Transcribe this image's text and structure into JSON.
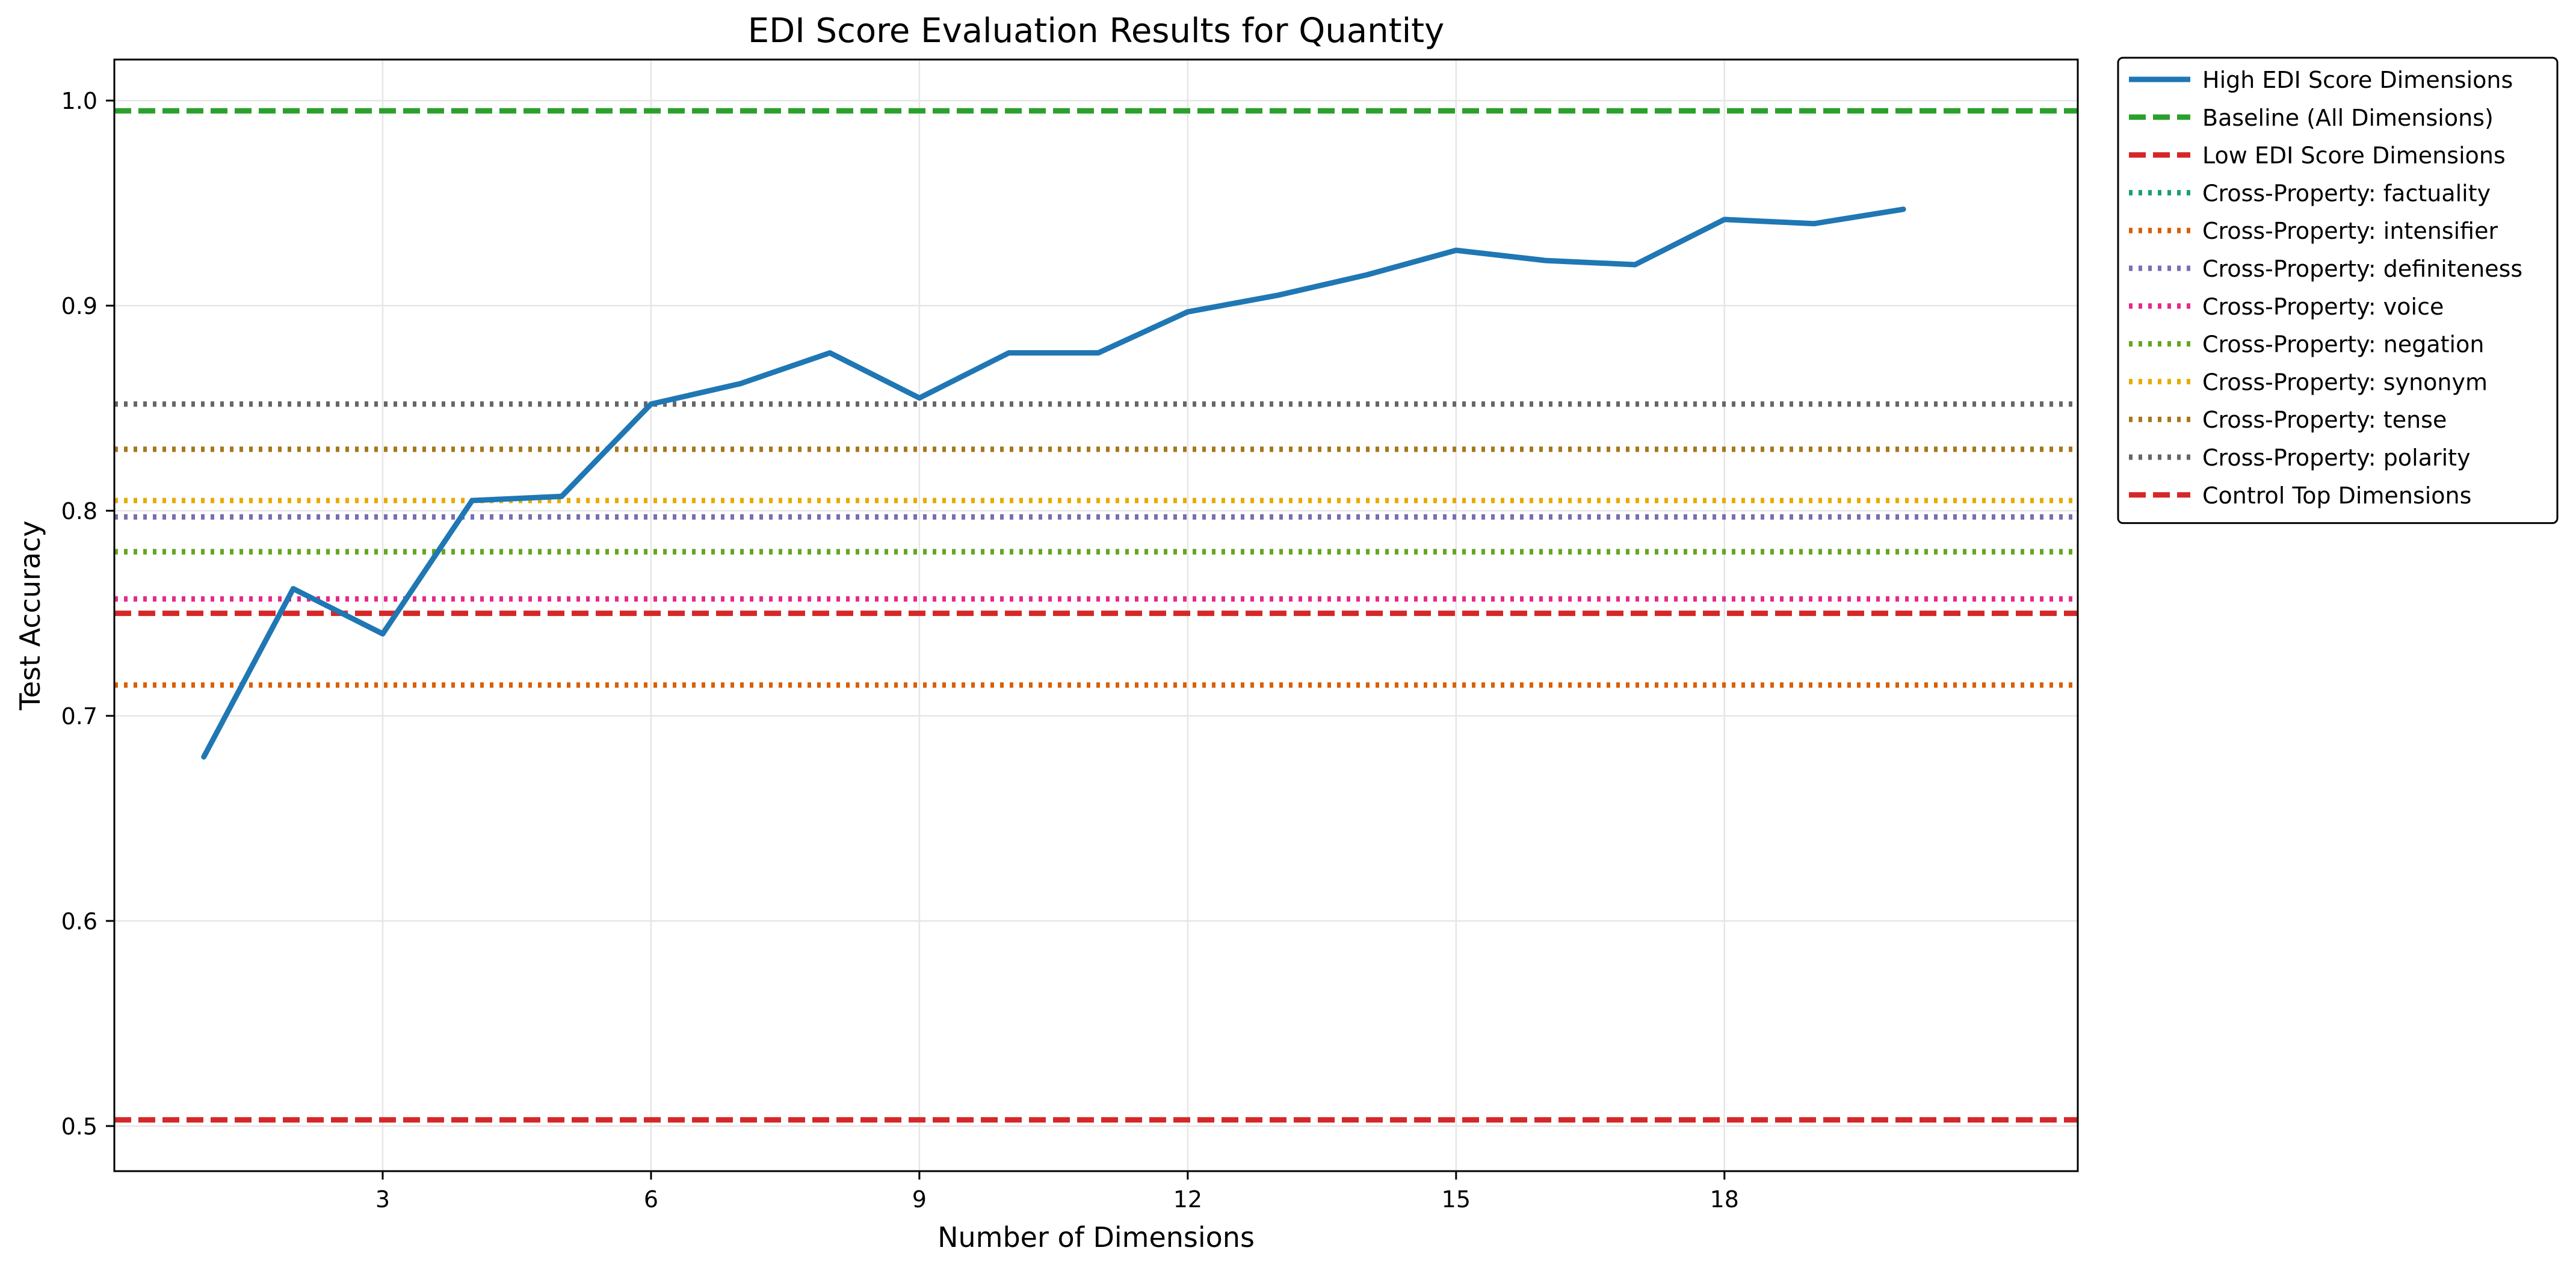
{
  "chart_data": {
    "type": "line",
    "title": "EDI Score Evaluation Results for Quantity",
    "xlabel": "Number of Dimensions",
    "ylabel": "Test Accuracy",
    "xlim": [
      0.0,
      21.95
    ],
    "ylim": [
      0.478,
      1.02
    ],
    "xticks": [
      3,
      6,
      9,
      12,
      15,
      18
    ],
    "xtick_labels": [
      "3",
      "6",
      "9",
      "12",
      "15",
      "18"
    ],
    "yticks": [
      0.5,
      0.6,
      0.7,
      0.8,
      0.9,
      1.0
    ],
    "ytick_labels": [
      "0.5",
      "0.6",
      "0.7",
      "0.8",
      "0.9",
      "1.0"
    ],
    "grid": true,
    "legend_position": "outside-upper-right",
    "series": [
      {
        "name": "High EDI Score Dimensions",
        "kind": "curve",
        "color": "#1f77b4",
        "style": "solid",
        "x": [
          1,
          2,
          3,
          4,
          5,
          6,
          7,
          8,
          9,
          10,
          11,
          12,
          13,
          14,
          15,
          16,
          17,
          18,
          19,
          20
        ],
        "y": [
          0.68,
          0.762,
          0.74,
          0.805,
          0.807,
          0.852,
          0.862,
          0.877,
          0.855,
          0.877,
          0.877,
          0.897,
          0.905,
          0.915,
          0.927,
          0.922,
          0.92,
          0.942,
          0.94,
          0.947
        ]
      },
      {
        "name": "Baseline (All Dimensions)",
        "kind": "hline",
        "color": "#2ca02c",
        "style": "dashed",
        "y": 0.995
      },
      {
        "name": "Low EDI Score Dimensions",
        "kind": "hline",
        "color": "#d62728",
        "style": "dashed",
        "y": 0.75
      },
      {
        "name": "Cross-Property: factuality",
        "kind": "hline",
        "color": "#1b9e77",
        "style": "dotted",
        "y": 0.78
      },
      {
        "name": "Cross-Property: intensifier",
        "kind": "hline",
        "color": "#d95f02",
        "style": "dotted",
        "y": 0.715
      },
      {
        "name": "Cross-Property: definiteness",
        "kind": "hline",
        "color": "#7570b3",
        "style": "dotted",
        "y": 0.797
      },
      {
        "name": "Cross-Property: voice",
        "kind": "hline",
        "color": "#e7298a",
        "style": "dotted",
        "y": 0.757
      },
      {
        "name": "Cross-Property: negation",
        "kind": "hline",
        "color": "#66a61e",
        "style": "dotted",
        "y": 0.78
      },
      {
        "name": "Cross-Property: synonym",
        "kind": "hline",
        "color": "#e6ab02",
        "style": "dotted",
        "y": 0.805
      },
      {
        "name": "Cross-Property: tense",
        "kind": "hline",
        "color": "#a6761d",
        "style": "dotted",
        "y": 0.83
      },
      {
        "name": "Cross-Property: polarity",
        "kind": "hline",
        "color": "#666666",
        "style": "dotted",
        "y": 0.852
      },
      {
        "name": "Control Top Dimensions",
        "kind": "hline",
        "color": "#d62728",
        "style": "dashed",
        "y": 0.503
      }
    ]
  }
}
